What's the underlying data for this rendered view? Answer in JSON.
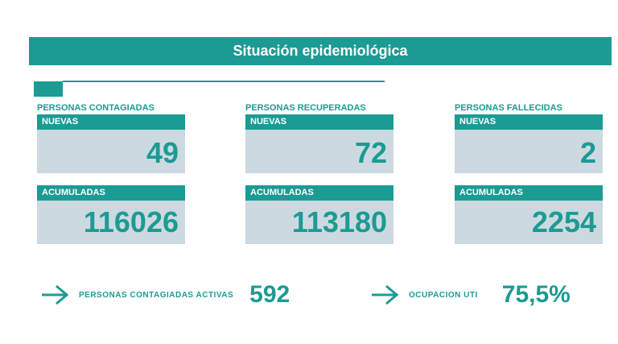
{
  "title": "Situación epidemiológica",
  "columns": [
    {
      "title": "PERSONAS CONTAGIADAS",
      "new_label": "NUEVAS",
      "new_value": "49",
      "acc_label": "ACUMULADAS",
      "acc_value": "116026"
    },
    {
      "title": "PERSONAS RECUPERADAS",
      "new_label": "NUEVAS",
      "new_value": "72",
      "acc_label": "ACUMULADAS",
      "acc_value": "113180"
    },
    {
      "title": "PERSONAS FALLECIDAS",
      "new_label": "NUEVAS",
      "new_value": "2",
      "acc_label": "ACUMULADAS",
      "acc_value": "2254"
    }
  ],
  "bottom": {
    "active_label": "PERSONAS CONTAGIADAS ACTIVAS",
    "active_value": "592",
    "uti_label": "OCUPACION UTI",
    "uti_value": "75,5%"
  },
  "colors": {
    "accent": "#1b9b93",
    "box": "#cdd9e1"
  },
  "icons": [
    "arrow-right-icon"
  ]
}
